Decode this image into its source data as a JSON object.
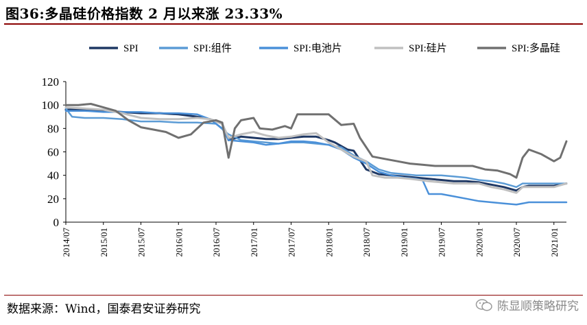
{
  "header": {
    "title": "图36:多晶硅价格指数 2 月以来涨 23.33%"
  },
  "footer": {
    "source": "数据来源：Wind，国泰君安证券研究",
    "watermark": "陈显顺策略研究",
    "watermark_icon": "wechat-icon"
  },
  "chart_data": {
    "type": "line",
    "title": "",
    "xlabel": "",
    "ylabel": "",
    "ylim": [
      0,
      120
    ],
    "yticks": [
      0,
      20,
      40,
      60,
      80,
      100,
      120
    ],
    "xlim": [
      "2014/07",
      "2021/03"
    ],
    "xticks": [
      "2014/07",
      "2015/01",
      "2015/07",
      "2016/01",
      "2016/07",
      "2017/01",
      "2017/07",
      "2018/01",
      "2018/07",
      "2019/01",
      "2019/07",
      "2020/01",
      "2020/07",
      "2021/01"
    ],
    "legend_position": "top",
    "grid": false,
    "series": [
      {
        "name": "SPI",
        "color": "#1f3864",
        "width": 3,
        "x": [
          "2014/07",
          "2014/10",
          "2015/01",
          "2015/04",
          "2015/07",
          "2015/10",
          "2016/01",
          "2016/04",
          "2016/06",
          "2016/08",
          "2016/09",
          "2016/11",
          "2017/01",
          "2017/03",
          "2017/05",
          "2017/07",
          "2017/09",
          "2017/11",
          "2018/01",
          "2018/02",
          "2018/04",
          "2018/05",
          "2018/07",
          "2018/09",
          "2018/11",
          "2019/01",
          "2019/03",
          "2019/05",
          "2019/07",
          "2019/09",
          "2019/11",
          "2020/01",
          "2020/03",
          "2020/05",
          "2020/07",
          "2020/08",
          "2020/09",
          "2020/11",
          "2021/01",
          "2021/03"
        ],
        "values": [
          96,
          96,
          95,
          94,
          93,
          93,
          92,
          90,
          88,
          84,
          70,
          73,
          72,
          71,
          71,
          72,
          73,
          73,
          70,
          68,
          62,
          61,
          45,
          41,
          40,
          39,
          38,
          37,
          36,
          35,
          35,
          34,
          32,
          30,
          27,
          30,
          31,
          31,
          31,
          33
        ]
      },
      {
        "name": "SPI:组件",
        "color": "#5b9bd5",
        "width": 2.5,
        "x": [
          "2014/07",
          "2014/08",
          "2014/10",
          "2015/01",
          "2015/04",
          "2015/07",
          "2015/10",
          "2016/01",
          "2016/04",
          "2016/07",
          "2016/09",
          "2016/11",
          "2017/01",
          "2017/03",
          "2017/05",
          "2017/07",
          "2017/09",
          "2017/11",
          "2018/01",
          "2018/03",
          "2018/05",
          "2018/07",
          "2018/09",
          "2018/11",
          "2019/01",
          "2019/03",
          "2019/05",
          "2019/07",
          "2019/09",
          "2019/11",
          "2020/01",
          "2020/03",
          "2020/05",
          "2020/07",
          "2020/08",
          "2020/10",
          "2020/12",
          "2021/01",
          "2021/03"
        ],
        "values": [
          97,
          90,
          89,
          89,
          88,
          86,
          86,
          85,
          85,
          84,
          75,
          70,
          69,
          68,
          67,
          68,
          68,
          67,
          66,
          64,
          57,
          52,
          45,
          42,
          41,
          40,
          40,
          40,
          39,
          38,
          36,
          35,
          33,
          30,
          33,
          33,
          33,
          33,
          33
        ]
      },
      {
        "name": "SPI:电池片",
        "color": "#4a90d9",
        "width": 2.5,
        "x": [
          "2014/07",
          "2014/10",
          "2015/01",
          "2015/04",
          "2015/07",
          "2015/10",
          "2016/01",
          "2016/04",
          "2016/06",
          "2016/08",
          "2016/09",
          "2016/11",
          "2017/01",
          "2017/03",
          "2017/05",
          "2017/07",
          "2017/09",
          "2017/11",
          "2018/01",
          "2018/03",
          "2018/05",
          "2018/07",
          "2018/09",
          "2018/11",
          "2019/01",
          "2019/03",
          "2019/04",
          "2019/05",
          "2019/07",
          "2019/09",
          "2019/11",
          "2020/01",
          "2020/03",
          "2020/05",
          "2020/07",
          "2020/09",
          "2020/11",
          "2021/01",
          "2021/03"
        ],
        "values": [
          95,
          95,
          94,
          94,
          94,
          93,
          93,
          92,
          88,
          80,
          70,
          69,
          68,
          66,
          67,
          69,
          69,
          68,
          66,
          62,
          55,
          50,
          43,
          40,
          38,
          37,
          36,
          24,
          24,
          22,
          20,
          18,
          17,
          16,
          15,
          17,
          17,
          17,
          17
        ]
      },
      {
        "name": "SPI:硅片",
        "color": "#c0c0c0",
        "width": 3,
        "x": [
          "2014/07",
          "2014/10",
          "2015/01",
          "2015/04",
          "2015/07",
          "2015/10",
          "2016/01",
          "2016/04",
          "2016/06",
          "2016/08",
          "2016/09",
          "2016/11",
          "2017/01",
          "2017/03",
          "2017/05",
          "2017/07",
          "2017/09",
          "2017/11",
          "2018/01",
          "2018/03",
          "2018/05",
          "2018/07",
          "2018/08",
          "2018/10",
          "2018/12",
          "2019/02",
          "2019/05",
          "2019/07",
          "2019/09",
          "2019/11",
          "2020/01",
          "2020/03",
          "2020/05",
          "2020/07",
          "2020/08",
          "2020/10",
          "2020/12",
          "2021/01",
          "2021/03"
        ],
        "values": [
          98,
          97,
          96,
          93,
          89,
          88,
          88,
          89,
          88,
          84,
          72,
          75,
          77,
          74,
          72,
          73,
          75,
          76,
          68,
          62,
          56,
          52,
          40,
          38,
          38,
          37,
          35,
          34,
          33,
          33,
          33,
          30,
          28,
          25,
          30,
          30,
          30,
          30,
          33
        ]
      },
      {
        "name": "SPI:多晶硅",
        "color": "#707070",
        "width": 3,
        "x": [
          "2014/07",
          "2014/09",
          "2014/11",
          "2015/01",
          "2015/03",
          "2015/05",
          "2015/07",
          "2015/09",
          "2015/11",
          "2016/01",
          "2016/03",
          "2016/05",
          "2016/07",
          "2016/08",
          "2016/09",
          "2016/10",
          "2016/11",
          "2017/01",
          "2017/02",
          "2017/04",
          "2017/06",
          "2017/07",
          "2017/08",
          "2017/09",
          "2017/11",
          "2018/01",
          "2018/03",
          "2018/05",
          "2018/06",
          "2018/08",
          "2018/10",
          "2018/12",
          "2019/02",
          "2019/04",
          "2019/06",
          "2019/08",
          "2019/10",
          "2019/12",
          "2020/02",
          "2020/04",
          "2020/06",
          "2020/07",
          "2020/08",
          "2020/09",
          "2020/11",
          "2021/01",
          "2021/02",
          "2021/03"
        ],
        "values": [
          100,
          100,
          101,
          98,
          95,
          87,
          81,
          79,
          77,
          72,
          75,
          85,
          87,
          85,
          55,
          80,
          87,
          89,
          80,
          79,
          82,
          80,
          92,
          92,
          92,
          92,
          83,
          84,
          72,
          56,
          54,
          52,
          50,
          49,
          48,
          48,
          48,
          48,
          45,
          44,
          41,
          38,
          55,
          62,
          58,
          52,
          55,
          69
        ]
      }
    ]
  }
}
